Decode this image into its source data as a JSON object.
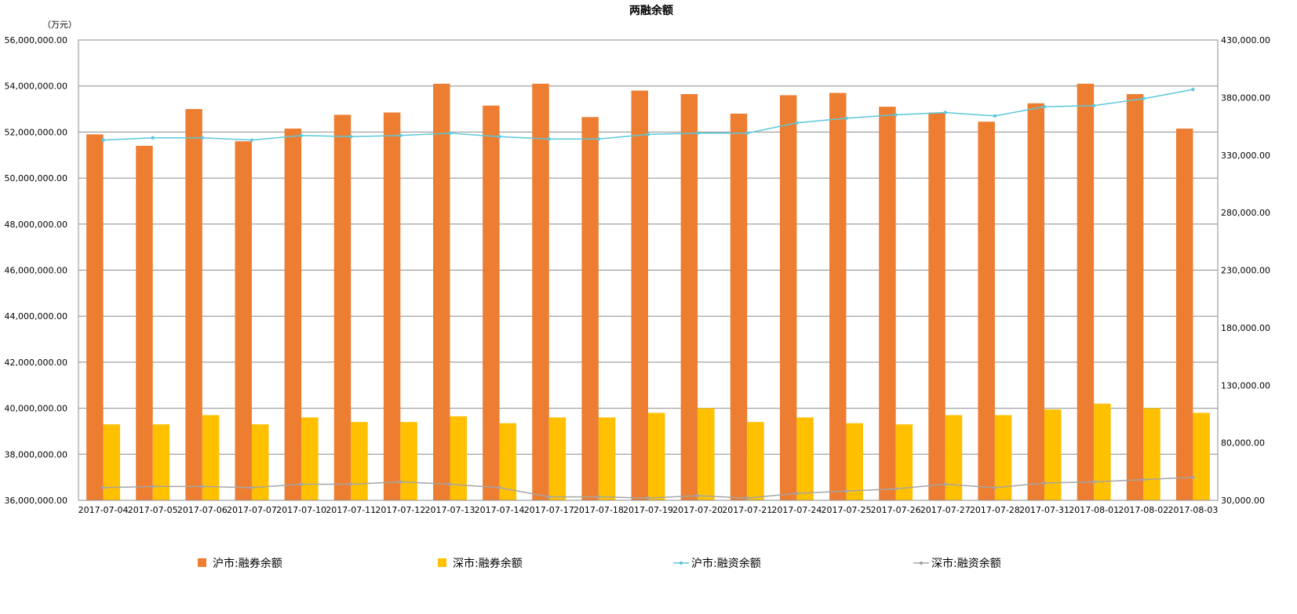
{
  "chart_data": {
    "type": "bar",
    "title": "两融余额",
    "y_unit_label": "（万元）",
    "categories": [
      "2017-07-04",
      "2017-07-05",
      "2017-07-06",
      "2017-07-07",
      "2017-07-10",
      "2017-07-11",
      "2017-07-12",
      "2017-07-13",
      "2017-07-14",
      "2017-07-17",
      "2017-07-18",
      "2017-07-19",
      "2017-07-20",
      "2017-07-21",
      "2017-07-24",
      "2017-07-25",
      "2017-07-26",
      "2017-07-27",
      "2017-07-28",
      "2017-07-31",
      "2017-08-01",
      "2017-08-02",
      "2017-08-03"
    ],
    "left_axis": {
      "min": 36000000,
      "max": 56000000,
      "step": 2000000,
      "tick_labels": [
        "36,000,000.00",
        "38,000,000.00",
        "40,000,000.00",
        "42,000,000.00",
        "44,000,000.00",
        "46,000,000.00",
        "48,000,000.00",
        "50,000,000.00",
        "52,000,000.00",
        "54,000,000.00",
        "56,000,000.00"
      ]
    },
    "right_axis": {
      "min": 30000,
      "max": 430000,
      "step": 50000,
      "tick_labels": [
        "30,000.00",
        "80,000.00",
        "130,000.00",
        "180,000.00",
        "230,000.00",
        "280,000.00",
        "330,000.00",
        "380,000.00",
        "430,000.00"
      ]
    },
    "series": [
      {
        "name": "沪市:融券余额",
        "type": "bar",
        "axis": "left",
        "color": "#ED7D31",
        "values": [
          51900000,
          51400000,
          53000000,
          51600000,
          52150000,
          52750000,
          52850000,
          54100000,
          53150000,
          54100000,
          52650000,
          53800000,
          53650000,
          52800000,
          53600000,
          53700000,
          53100000,
          52850000,
          52450000,
          53250000,
          54100000,
          53650000,
          52150000
        ]
      },
      {
        "name": "深市:融券余额",
        "type": "bar",
        "axis": "left",
        "color": "#FFC000",
        "values": [
          39300000,
          39300000,
          39700000,
          39300000,
          39600000,
          39400000,
          39400000,
          39650000,
          39350000,
          39600000,
          39600000,
          39800000,
          40000000,
          39400000,
          39600000,
          39350000,
          39300000,
          39700000,
          39700000,
          39950000,
          40200000,
          40000000,
          39800000
        ]
      },
      {
        "name": "沪市:融资余额",
        "type": "line",
        "axis": "left",
        "color": "#5BC8DC",
        "values": [
          51650000,
          51750000,
          51750000,
          51650000,
          51850000,
          51800000,
          51850000,
          51950000,
          51800000,
          51700000,
          51700000,
          51900000,
          51950000,
          51950000,
          52400000,
          52600000,
          52750000,
          52850000,
          52700000,
          53100000,
          53150000,
          53450000,
          53850000
        ]
      },
      {
        "name": "深市:融资余额",
        "type": "line",
        "axis": "left",
        "color": "#A5A5A5",
        "values": [
          36550000,
          36600000,
          36600000,
          36550000,
          36700000,
          36700000,
          36800000,
          36700000,
          36550000,
          36150000,
          36150000,
          36100000,
          36200000,
          36100000,
          36300000,
          36400000,
          36500000,
          36700000,
          36550000,
          36750000,
          36800000,
          36900000,
          37000000
        ]
      }
    ],
    "legend_position": "bottom",
    "grid": true
  }
}
